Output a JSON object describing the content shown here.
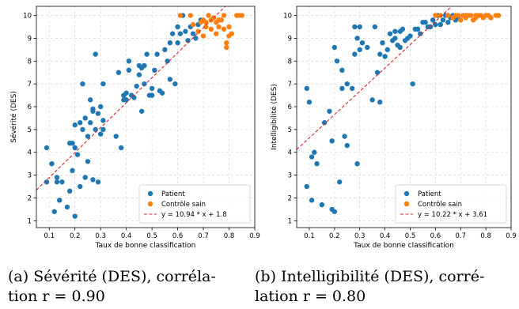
{
  "chart_data": [
    {
      "type": "scatter",
      "title": "",
      "xlabel": "Taux de bonne classification",
      "ylabel": "Sévérité (DES)",
      "xlim": [
        0.05,
        0.9
      ],
      "ylim": [
        0.7,
        10.4
      ],
      "xticks": [
        "0.1",
        "0.2",
        "0.3",
        "0.4",
        "0.5",
        "0.6",
        "0.7",
        "0.8",
        "0.9"
      ],
      "yticks": [
        "1",
        "2",
        "3",
        "4",
        "5",
        "6",
        "7",
        "8",
        "9",
        "10"
      ],
      "grid": true,
      "legend_position": "bottom-right",
      "fit": {
        "slope": 10.94,
        "intercept": 1.8,
        "label": "y = 10.94 * x + 1.8",
        "color": "#d62728"
      },
      "series": [
        {
          "name": "Patient",
          "color": "#1f77b4",
          "x": [
            0.09,
            0.09,
            0.11,
            0.12,
            0.13,
            0.13,
            0.14,
            0.15,
            0.17,
            0.18,
            0.18,
            0.19,
            0.19,
            0.2,
            0.2,
            0.2,
            0.21,
            0.22,
            0.22,
            0.23,
            0.23,
            0.24,
            0.24,
            0.25,
            0.25,
            0.26,
            0.26,
            0.27,
            0.27,
            0.27,
            0.28,
            0.28,
            0.29,
            0.29,
            0.3,
            0.3,
            0.31,
            0.31,
            0.31,
            0.36,
            0.37,
            0.38,
            0.39,
            0.39,
            0.4,
            0.4,
            0.41,
            0.41,
            0.42,
            0.43,
            0.44,
            0.45,
            0.45,
            0.46,
            0.46,
            0.47,
            0.47,
            0.48,
            0.49,
            0.5,
            0.5,
            0.51,
            0.52,
            0.53,
            0.54,
            0.55,
            0.56,
            0.57,
            0.57,
            0.58,
            0.59,
            0.6,
            0.6,
            0.61,
            0.62,
            0.63,
            0.64,
            0.65,
            0.66,
            0.67,
            0.68,
            0.69
          ],
          "y": [
            4.2,
            2.7,
            3.5,
            1.4,
            2.9,
            2.7,
            1.9,
            2.7,
            1.6,
            4.4,
            2.3,
            3.2,
            4.4,
            1.2,
            4.2,
            5.2,
            3.9,
            5.3,
            2.5,
            7.0,
            5.0,
            5.5,
            2.9,
            4.7,
            3.6,
            5.3,
            6.3,
            5.8,
            5.9,
            2.8,
            5.0,
            8.3,
            5.7,
            2.7,
            6.0,
            4.8,
            5.0,
            5.4,
            7.0,
            4.7,
            7.5,
            4.2,
            6.3,
            6.5,
            6.3,
            6.6,
            8.0,
            7.6,
            6.5,
            6.4,
            6.9,
            7.4,
            7.8,
            5.8,
            7.7,
            7.8,
            7.0,
            8.3,
            6.5,
            6.8,
            6.5,
            7.6,
            8.3,
            6.7,
            6.6,
            8.5,
            8.0,
            8.8,
            7.2,
            9.2,
            7.0,
            9.5,
            8.8,
            9.2,
            10.0,
            9.3,
            8.9,
            9.5,
            9.2,
            9.0,
            9.6,
            9.8
          ]
        },
        {
          "name": "Contrôle sain",
          "color": "#ff7f0e",
          "x": [
            0.61,
            0.65,
            0.66,
            0.68,
            0.69,
            0.7,
            0.7,
            0.71,
            0.71,
            0.72,
            0.73,
            0.73,
            0.74,
            0.75,
            0.75,
            0.76,
            0.76,
            0.77,
            0.78,
            0.78,
            0.79,
            0.79,
            0.8,
            0.8,
            0.81,
            0.83,
            0.84,
            0.85
          ],
          "y": [
            10.0,
            10.0,
            9.6,
            9.3,
            9.7,
            9.8,
            9.1,
            9.5,
            9.7,
            10.0,
            9.4,
            9.8,
            9.9,
            9.7,
            9.2,
            9.8,
            9.5,
            9.8,
            10.0,
            9.4,
            8.8,
            8.6,
            9.5,
            9.1,
            9.2,
            10.0,
            10.0,
            10.0
          ]
        }
      ]
    },
    {
      "type": "scatter",
      "title": "",
      "xlabel": "Taux de bonne classification",
      "ylabel": "Intelligibilité (DES)",
      "xlim": [
        0.05,
        0.9
      ],
      "ylim": [
        0.7,
        10.4
      ],
      "xticks": [
        "0.1",
        "0.2",
        "0.3",
        "0.4",
        "0.5",
        "0.6",
        "0.7",
        "0.8",
        "0.9"
      ],
      "yticks": [
        "1",
        "2",
        "3",
        "4",
        "5",
        "6",
        "7",
        "8",
        "9",
        "10"
      ],
      "grid": true,
      "legend_position": "bottom-right",
      "fit": {
        "slope": 10.22,
        "intercept": 3.61,
        "label": "y = 10.22 * x + 3.61",
        "color": "#d62728"
      },
      "series": [
        {
          "name": "Patient",
          "color": "#1f77b4",
          "x": [
            0.09,
            0.09,
            0.1,
            0.11,
            0.11,
            0.12,
            0.13,
            0.15,
            0.16,
            0.18,
            0.19,
            0.19,
            0.2,
            0.2,
            0.21,
            0.22,
            0.23,
            0.23,
            0.24,
            0.25,
            0.25,
            0.27,
            0.28,
            0.28,
            0.29,
            0.29,
            0.3,
            0.3,
            0.31,
            0.33,
            0.35,
            0.36,
            0.37,
            0.38,
            0.38,
            0.39,
            0.4,
            0.41,
            0.42,
            0.43,
            0.44,
            0.44,
            0.45,
            0.46,
            0.46,
            0.47,
            0.48,
            0.49,
            0.5,
            0.51,
            0.52,
            0.53,
            0.54,
            0.55,
            0.56,
            0.57,
            0.58,
            0.59,
            0.6,
            0.61,
            0.62,
            0.63,
            0.64,
            0.65,
            0.66,
            0.67,
            0.68,
            0.69
          ],
          "y": [
            6.8,
            2.5,
            6.2,
            3.8,
            1.9,
            4.0,
            3.5,
            1.7,
            5.3,
            5.8,
            1.5,
            4.5,
            1.4,
            8.6,
            8.0,
            2.7,
            6.8,
            7.6,
            4.7,
            7.0,
            4.3,
            6.8,
            8.3,
            9.5,
            9.0,
            3.5,
            9.5,
            8.5,
            8.8,
            8.6,
            6.3,
            9.5,
            7.5,
            8.3,
            6.2,
            8.8,
            8.2,
            8.5,
            9.2,
            8.9,
            9.0,
            9.3,
            8.7,
            9.3,
            8.6,
            9.4,
            8.9,
            9.0,
            9.1,
            7.0,
            9.4,
            9.4,
            9.2,
            9.7,
            9.7,
            9.5,
            9.5,
            9.8,
            9.6,
            10.0,
            9.6,
            9.8,
            10.0,
            9.7,
            9.9,
            10.0,
            9.8,
            9.9
          ]
        },
        {
          "name": "Contrôle sain",
          "color": "#ff7f0e",
          "x": [
            0.6,
            0.62,
            0.65,
            0.67,
            0.68,
            0.69,
            0.7,
            0.71,
            0.72,
            0.72,
            0.73,
            0.74,
            0.75,
            0.76,
            0.76,
            0.77,
            0.78,
            0.79,
            0.8,
            0.81,
            0.82,
            0.84,
            0.85
          ],
          "y": [
            10.0,
            10.0,
            10.0,
            9.9,
            10.0,
            10.0,
            9.8,
            10.0,
            10.0,
            9.9,
            10.0,
            10.0,
            9.8,
            10.0,
            9.9,
            10.0,
            10.0,
            9.9,
            10.0,
            10.0,
            9.9,
            10.0,
            10.0
          ]
        }
      ]
    }
  ],
  "captions": [
    {
      "line1": "(a) Sévérité (DES), corréla-",
      "line2": "tion r = 0.90"
    },
    {
      "line1": "(b) Intelligibilité (DES), corré-",
      "line2": "lation r = 0.80"
    }
  ]
}
